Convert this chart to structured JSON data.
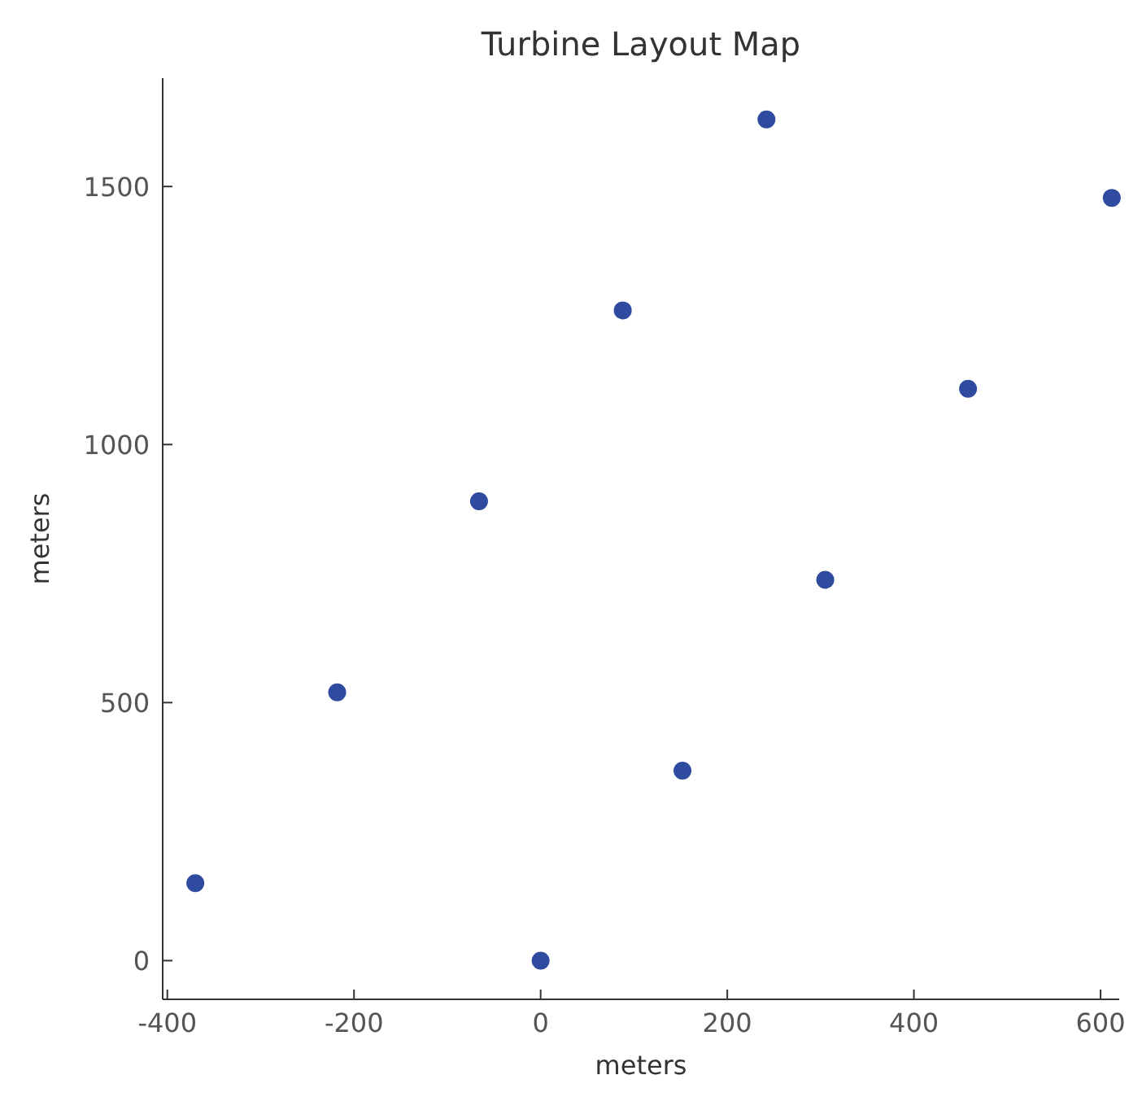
{
  "chart_data": {
    "type": "scatter",
    "title": "Turbine Layout Map",
    "xlabel": "meters",
    "ylabel": "meters",
    "x": [
      -370,
      -218,
      -66,
      88,
      242,
      0,
      152,
      305,
      458,
      612
    ],
    "values": [
      150,
      520,
      890,
      1260,
      1630,
      0,
      368,
      738,
      1108,
      1478
    ],
    "color": "#2f4b9f",
    "marker": "circle",
    "xlim": [
      -405,
      620
    ],
    "ylim": [
      -75,
      1710
    ],
    "xticks": [
      -400,
      -200,
      0,
      200,
      400,
      600
    ],
    "yticks": [
      0,
      500,
      1000,
      1500
    ],
    "grid": false
  }
}
